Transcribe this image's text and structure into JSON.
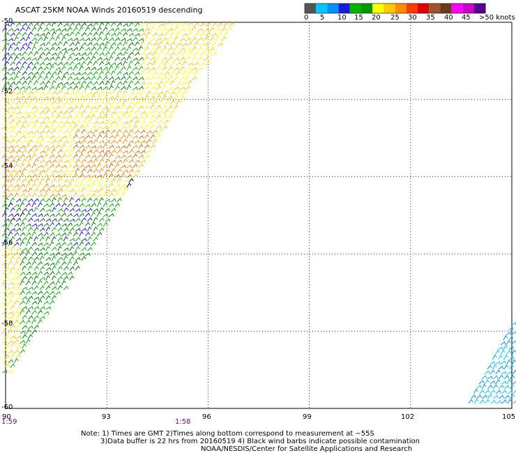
{
  "title": "ASCAT 25KM NOAA Winds 20160519 descending",
  "legend": {
    "labels": [
      "0",
      "5",
      "10",
      "15",
      "20",
      "25",
      "30",
      "35",
      "40",
      "45",
      ">50 knots"
    ],
    "colors": [
      "#555555",
      "#00c8ff",
      "#0090ff",
      "#1a1ae0",
      "#00b400",
      "#009a00",
      "#ffff00",
      "#ffc800",
      "#ff8c00",
      "#ff3c00",
      "#e00000",
      "#a0522d",
      "#6b3a1e",
      "#ff00ff",
      "#c800c8",
      "#5a0090"
    ]
  },
  "map": {
    "lat_labels": [
      "-50",
      "-52",
      "-54",
      "-56",
      "-58",
      "-60"
    ],
    "lon_labels": [
      "90",
      "93",
      "96",
      "99",
      "102",
      "105"
    ],
    "lat_values": [
      -50,
      -52,
      -54,
      -56,
      -58,
      -60
    ],
    "lon_values": [
      90,
      93,
      96,
      99,
      102,
      105
    ],
    "times": [
      "1:59",
      "1:58"
    ]
  },
  "notes": [
    "Note: 1) Times are GMT 2)Times along bottom correspond to measurement at −55S",
    "3)Data buffer is 22 hrs from 20160519 4) Black wind barbs indicate possible contamination",
    "NOAA/NESDIS/Center for Satellite Applications and Research"
  ]
}
